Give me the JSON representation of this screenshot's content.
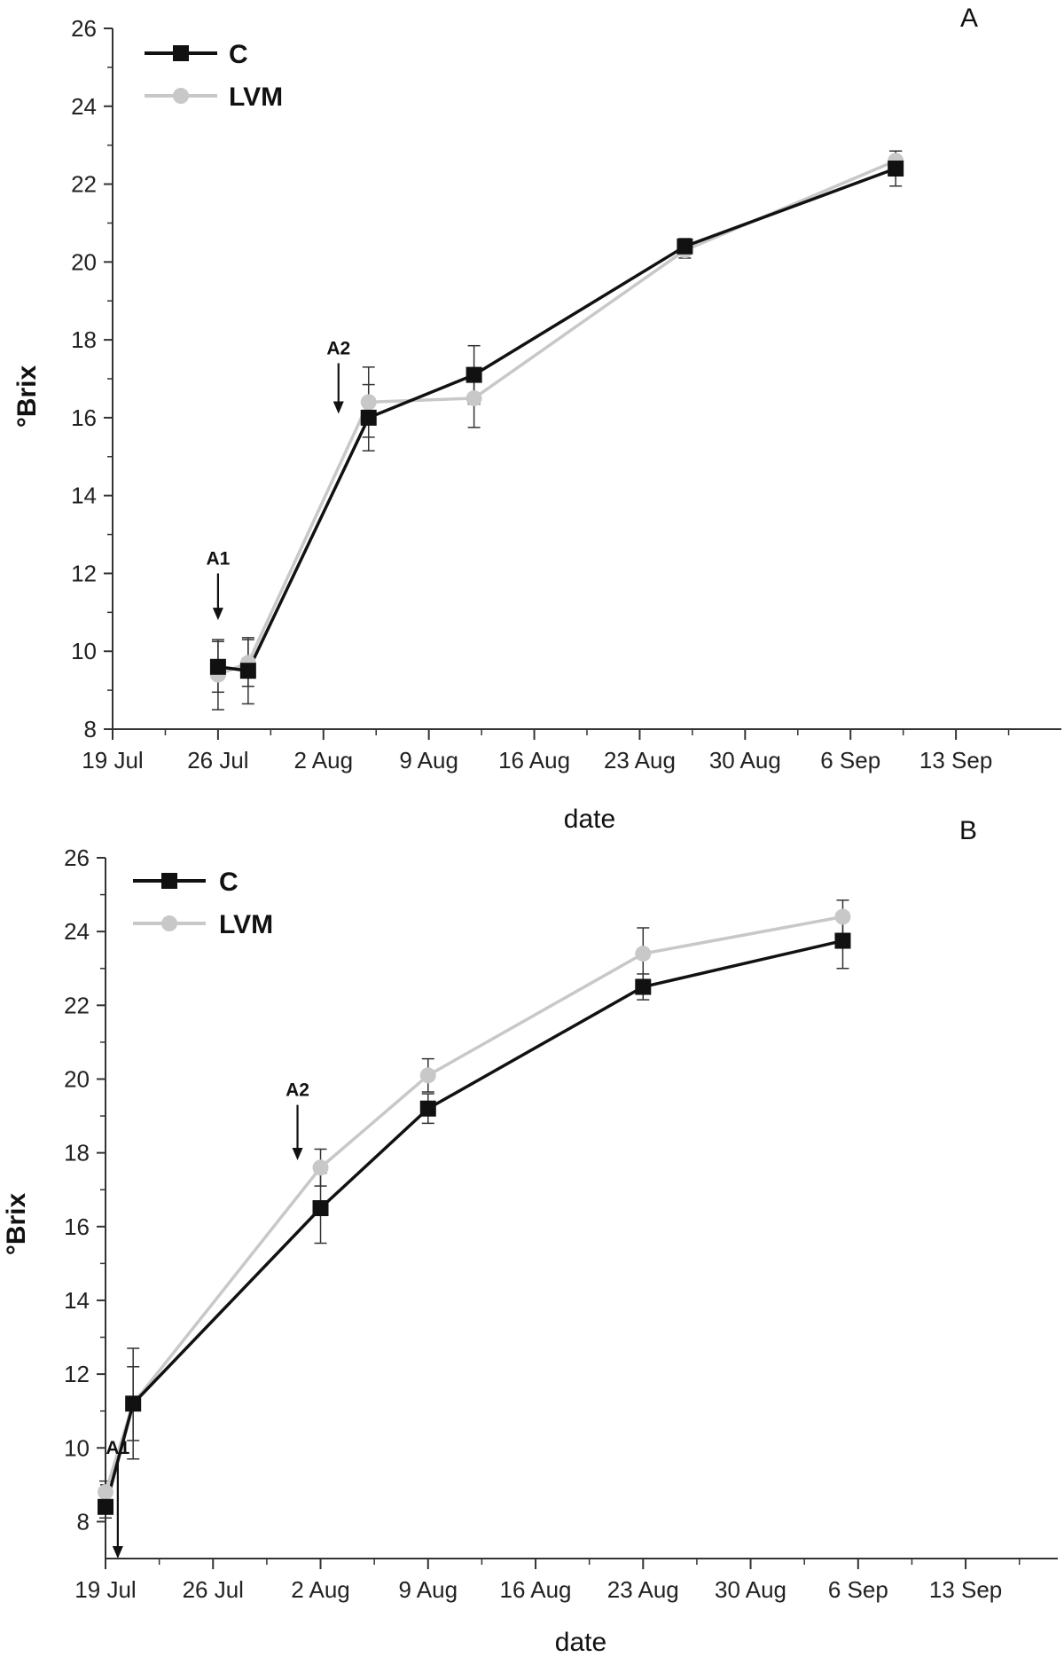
{
  "chart_data": [
    {
      "panel": "A",
      "type": "line",
      "xlabel": "date",
      "ylabel": "°Brix",
      "xlim": [
        0,
        63
      ],
      "ylim": [
        8,
        26
      ],
      "x_ticks": [
        {
          "value": 0,
          "label": "19 Jul"
        },
        {
          "value": 7,
          "label": "26 Jul"
        },
        {
          "value": 14,
          "label": "2 Aug"
        },
        {
          "value": 21,
          "label": "9 Aug"
        },
        {
          "value": 28,
          "label": "16 Aug"
        },
        {
          "value": 35,
          "label": "23 Aug"
        },
        {
          "value": 42,
          "label": "30 Aug"
        },
        {
          "value": 49,
          "label": "6 Sep"
        },
        {
          "value": 56,
          "label": "13 Sep"
        }
      ],
      "y_ticks": [
        {
          "value": 8,
          "label": "8"
        },
        {
          "value": 10,
          "label": "10"
        },
        {
          "value": 12,
          "label": "12"
        },
        {
          "value": 14,
          "label": "14"
        },
        {
          "value": 16,
          "label": "16"
        },
        {
          "value": 18,
          "label": "18"
        },
        {
          "value": 20,
          "label": "20"
        },
        {
          "value": 22,
          "label": "22"
        },
        {
          "value": 24,
          "label": "24"
        },
        {
          "value": 26,
          "label": "26"
        }
      ],
      "series": [
        {
          "name": "C",
          "color": "#111111",
          "marker": "square",
          "points": [
            {
              "x": 7,
              "y": 9.6,
              "err": 0.65
            },
            {
              "x": 9,
              "y": 9.5,
              "err": 0.85
            },
            {
              "x": 17,
              "y": 16.0,
              "err": 0.85
            },
            {
              "x": 24,
              "y": 17.1,
              "err": 0.75
            },
            {
              "x": 38,
              "y": 20.4,
              "err": 0.2
            },
            {
              "x": 52,
              "y": 22.4,
              "err": 0.45
            }
          ]
        },
        {
          "name": "LVM",
          "color": "#c8c8c8",
          "marker": "circle",
          "points": [
            {
              "x": 7,
              "y": 9.4,
              "err": 0.9
            },
            {
              "x": 9,
              "y": 9.7,
              "err": 0.6
            },
            {
              "x": 17,
              "y": 16.4,
              "err": 0.9
            },
            {
              "x": 24,
              "y": 16.5,
              "err": 0.75
            },
            {
              "x": 38,
              "y": 20.3,
              "err": 0.2
            },
            {
              "x": 52,
              "y": 22.6,
              "err": 0.25
            }
          ]
        }
      ],
      "annotations": [
        {
          "text": "A1",
          "x": 7,
          "y_from": 12.0,
          "y_to": 10.8
        },
        {
          "text": "A2",
          "x": 15,
          "y_from": 17.4,
          "y_to": 16.1
        }
      ],
      "legend": {
        "position": "top-left",
        "entries": [
          "C",
          "LVM"
        ]
      },
      "grid": false
    },
    {
      "panel": "B",
      "type": "line",
      "xlabel": "date",
      "ylabel": "°Brix",
      "xlim": [
        0,
        62
      ],
      "ylim": [
        7,
        26
      ],
      "x_ticks": [
        {
          "value": 0,
          "label": "19 Jul"
        },
        {
          "value": 7,
          "label": "26 Jul"
        },
        {
          "value": 14,
          "label": "2 Aug"
        },
        {
          "value": 21,
          "label": "9 Aug"
        },
        {
          "value": 28,
          "label": "16 Aug"
        },
        {
          "value": 35,
          "label": "23 Aug"
        },
        {
          "value": 42,
          "label": "30 Aug"
        },
        {
          "value": 49,
          "label": "6 Sep"
        },
        {
          "value": 56,
          "label": "13 Sep"
        }
      ],
      "y_ticks": [
        {
          "value": 8,
          "label": "8"
        },
        {
          "value": 10,
          "label": "10"
        },
        {
          "value": 12,
          "label": "12"
        },
        {
          "value": 14,
          "label": "14"
        },
        {
          "value": 16,
          "label": "16"
        },
        {
          "value": 18,
          "label": "18"
        },
        {
          "value": 20,
          "label": "20"
        },
        {
          "value": 22,
          "label": "22"
        },
        {
          "value": 24,
          "label": "24"
        },
        {
          "value": 26,
          "label": "26"
        }
      ],
      "series": [
        {
          "name": "C",
          "color": "#111111",
          "marker": "square",
          "points": [
            {
              "x": 0,
              "y": 8.4,
              "err": 0.3
            },
            {
              "x": 1.8,
              "y": 11.2,
              "err": 1.0
            },
            {
              "x": 14,
              "y": 16.5,
              "err": 0.95
            },
            {
              "x": 21,
              "y": 19.2,
              "err": 0.4
            },
            {
              "x": 35,
              "y": 22.5,
              "err": 0.35
            },
            {
              "x": 48,
              "y": 23.75,
              "err": 0.75
            }
          ]
        },
        {
          "name": "LVM",
          "color": "#c8c8c8",
          "marker": "circle",
          "points": [
            {
              "x": 0,
              "y": 8.8,
              "err": 0.3
            },
            {
              "x": 1.8,
              "y": 11.2,
              "err": 1.5
            },
            {
              "x": 14,
              "y": 17.6,
              "err": 0.5
            },
            {
              "x": 21,
              "y": 20.1,
              "err": 0.45
            },
            {
              "x": 35,
              "y": 23.4,
              "err": 0.7
            },
            {
              "x": 48,
              "y": 24.4,
              "err": 0.45
            }
          ]
        }
      ],
      "annotations": [
        {
          "text": "A1",
          "x": 0.8,
          "y_from": 9.6,
          "y_to": 7.0
        },
        {
          "text": "A2",
          "x": 12.5,
          "y_from": 19.3,
          "y_to": 17.8
        }
      ],
      "legend": {
        "position": "top-left",
        "entries": [
          "C",
          "LVM"
        ]
      },
      "grid": false
    }
  ]
}
